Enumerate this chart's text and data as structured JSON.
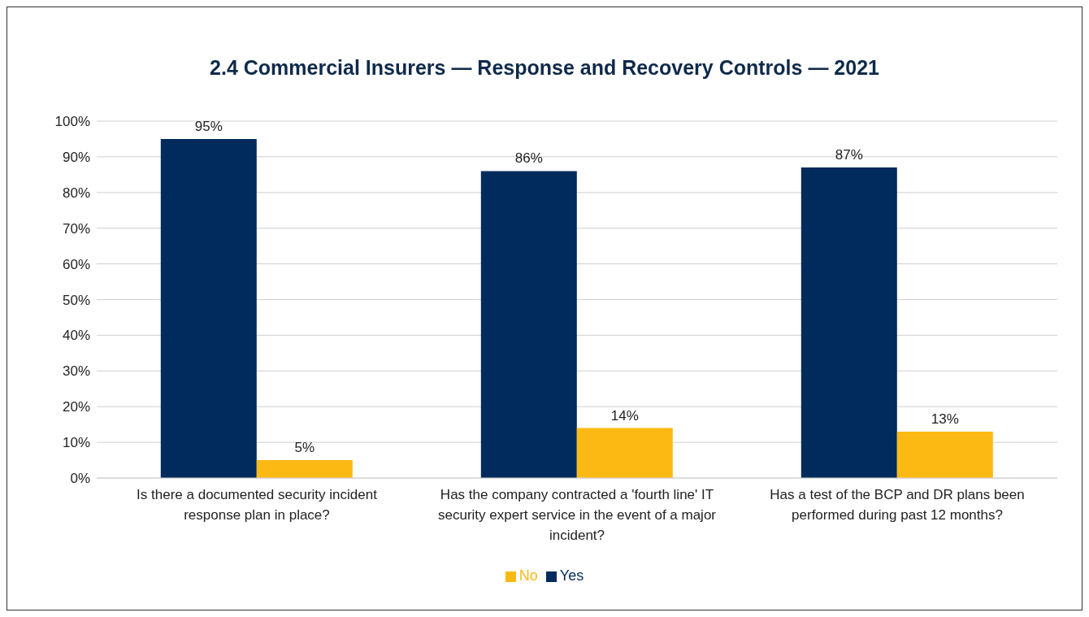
{
  "chart_data": {
    "type": "bar",
    "title": "2.4 Commercial Insurers — Response and Recovery Controls — 2021",
    "categories": [
      "Is there a documented security incident response plan in place?",
      "Has the company contracted a 'fourth line' IT security expert service in the event of a major incident?",
      "Has a test of the BCP and DR plans been performed during past 12 months?"
    ],
    "series": [
      {
        "name": "Yes",
        "color": "#002b5c",
        "values": [
          95,
          86,
          87
        ],
        "value_labels": [
          "95%",
          "86%",
          "87%"
        ]
      },
      {
        "name": "No",
        "color": "#fdb913",
        "values": [
          5,
          14,
          13
        ],
        "value_labels": [
          "5%",
          "14%",
          "13%"
        ]
      }
    ],
    "ylim": [
      0,
      100
    ],
    "yticks": [
      {
        "value": 0,
        "label": "0%"
      },
      {
        "value": 10,
        "label": "10%"
      },
      {
        "value": 20,
        "label": "20%"
      },
      {
        "value": 30,
        "label": "30%"
      },
      {
        "value": 40,
        "label": "40%"
      },
      {
        "value": 50,
        "label": "50%"
      },
      {
        "value": 60,
        "label": "60%"
      },
      {
        "value": 70,
        "label": "70%"
      },
      {
        "value": 80,
        "label": "80%"
      },
      {
        "value": 90,
        "label": "90%"
      },
      {
        "value": 100,
        "label": "100%"
      }
    ],
    "grid": "y",
    "legend": "bottom"
  }
}
